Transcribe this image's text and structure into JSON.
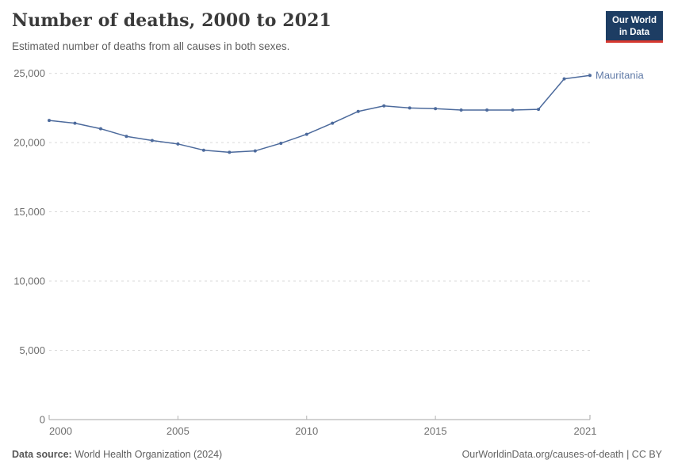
{
  "header": {
    "title": "Number of deaths, 2000 to 2021",
    "subtitle": "Estimated number of deaths from all causes in both sexes."
  },
  "logo": {
    "line1": "Our World",
    "line2": "in Data",
    "bg_color": "#1d3d63",
    "accent_color": "#d7382f",
    "text_color": "#ffffff"
  },
  "chart_data": {
    "type": "line",
    "title": "Number of deaths, 2000 to 2021",
    "xlabel": "",
    "ylabel": "",
    "x": [
      2000,
      2001,
      2002,
      2003,
      2004,
      2005,
      2006,
      2007,
      2008,
      2009,
      2010,
      2011,
      2012,
      2013,
      2014,
      2015,
      2016,
      2017,
      2018,
      2019,
      2020,
      2021
    ],
    "series": [
      {
        "name": "Mauritania",
        "color": "#4c6a9c",
        "values": [
          21600,
          21400,
          21000,
          20450,
          20150,
          19900,
          19450,
          19300,
          19400,
          19950,
          20600,
          21400,
          22250,
          22650,
          22500,
          22450,
          22350,
          22350,
          22350,
          22400,
          24600,
          24850
        ]
      }
    ],
    "xlim": [
      2000,
      2021
    ],
    "ylim": [
      0,
      25000
    ],
    "x_ticks": [
      2000,
      2005,
      2010,
      2015,
      2021
    ],
    "y_ticks": [
      0,
      5000,
      10000,
      15000,
      20000,
      25000
    ],
    "grid": "horizontal-dashed",
    "legend_position": "line-end-label"
  },
  "axis_style": {
    "tick_label_color": "#6e6e6e",
    "grid_color": "#d9d9d9",
    "axis_color": "#a5a5a5",
    "tick_color": "#b5b5b5"
  },
  "footer": {
    "source_label": "Data source:",
    "source_value": " World Health Organization (2024)",
    "link_text": "OurWorldinData.org/causes-of-death | CC BY"
  }
}
